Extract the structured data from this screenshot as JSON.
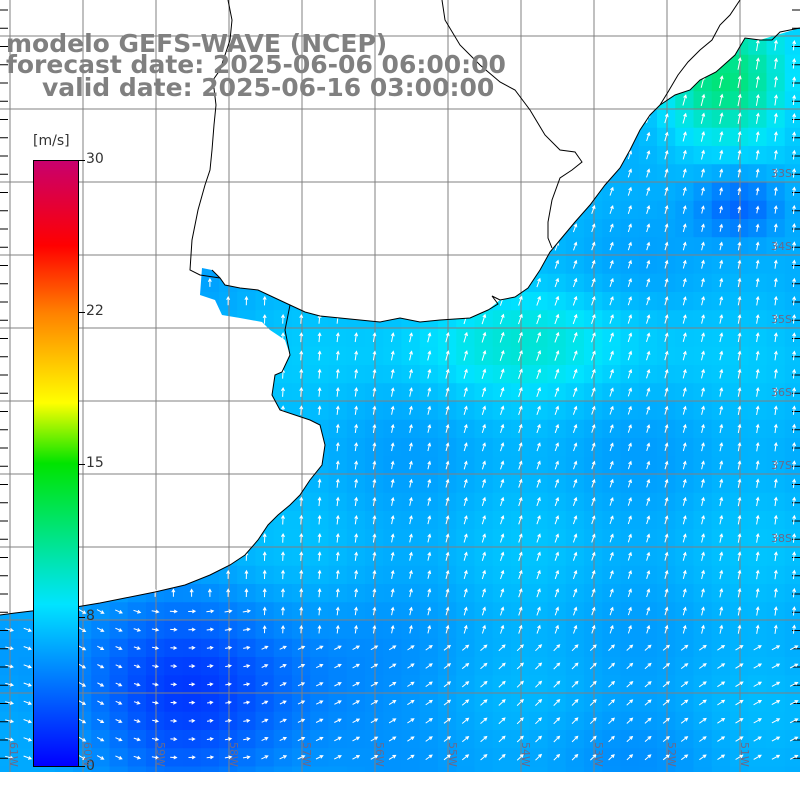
{
  "title": {
    "line1": "modelo GEFS-WAVE (NCEP)",
    "line2": "forecast date: 2025-06-06 06:00:00",
    "line3": "valid date: 2025-06-16 03:00:00"
  },
  "colorbar": {
    "unit": "[m/s]",
    "ticks": [
      "30",
      "22",
      "15",
      "8",
      "0"
    ],
    "tick_values": [
      30,
      22,
      15,
      8,
      0
    ],
    "min": 0,
    "max": 30,
    "colors": [
      "#0000ff",
      "#00e4ff",
      "#00e400",
      "#ffff00",
      "#ff8000",
      "#ff0000",
      "#c8006e"
    ]
  },
  "lat_labels": [
    "33S",
    "34S",
    "35S",
    "36S",
    "37S",
    "38S"
  ],
  "lon_labels": [
    "61W",
    "60W",
    "59W",
    "58W",
    "57W",
    "56W",
    "55W",
    "54W",
    "53W",
    "52W",
    "51W"
  ],
  "colors": {
    "land": "#ffffff",
    "coast": "#000000",
    "grid": "#808080",
    "arrow": "#ffffff",
    "title": "#808080"
  }
}
